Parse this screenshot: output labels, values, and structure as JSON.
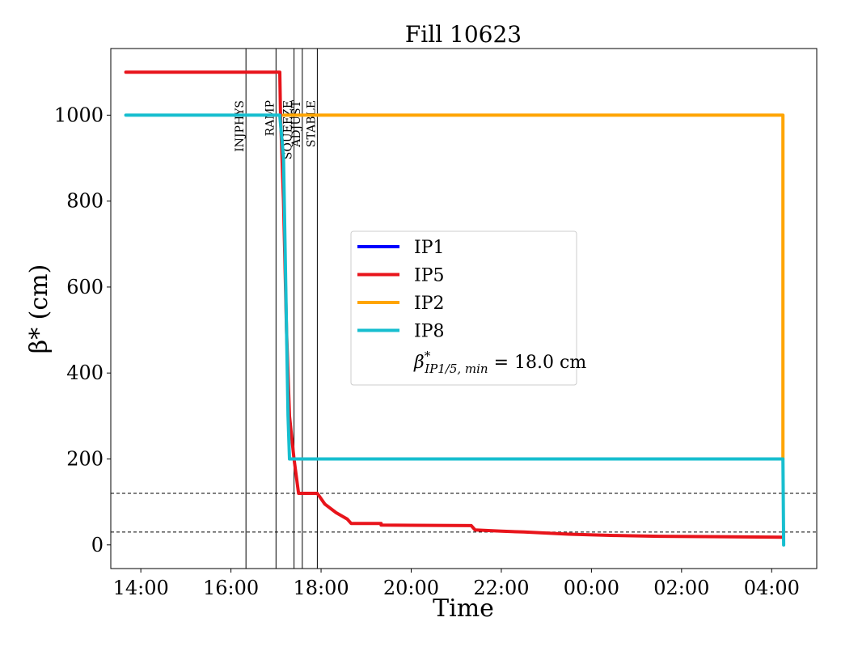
{
  "chart_data": {
    "type": "line",
    "title": "Fill 10623",
    "xlabel": "Time",
    "ylabel": "β* (cm)",
    "x_ticks": [
      "14:00",
      "16:00",
      "18:00",
      "20:00",
      "22:00",
      "00:00",
      "02:00",
      "04:00"
    ],
    "y_ticks": [
      0,
      200,
      400,
      600,
      800,
      1000
    ],
    "xlim": [
      "13:20",
      "05:00"
    ],
    "ylim": [
      -55,
      1155
    ],
    "grid": false,
    "legend_placement": "center",
    "series": [
      {
        "name": "IP1",
        "color": "#0000ff",
        "points": []
      },
      {
        "name": "IP5",
        "color": "#e8141b",
        "points": [
          {
            "x": "13:40",
            "y": 1100
          },
          {
            "x": "17:05",
            "y": 1100
          },
          {
            "x": "17:06",
            "y": 1000
          },
          {
            "x": "17:10",
            "y": 800
          },
          {
            "x": "17:14",
            "y": 500
          },
          {
            "x": "17:18",
            "y": 300
          },
          {
            "x": "17:24",
            "y": 200
          },
          {
            "x": "17:30",
            "y": 120
          },
          {
            "x": "17:55",
            "y": 120
          },
          {
            "x": "18:05",
            "y": 95
          },
          {
            "x": "18:20",
            "y": 75
          },
          {
            "x": "18:35",
            "y": 60
          },
          {
            "x": "18:40",
            "y": 50
          },
          {
            "x": "19:20",
            "y": 50
          },
          {
            "x": "19:20",
            "y": 46
          },
          {
            "x": "21:20",
            "y": 45
          },
          {
            "x": "21:25",
            "y": 35
          },
          {
            "x": "22:00",
            "y": 32
          },
          {
            "x": "22:30",
            "y": 30
          },
          {
            "x": "23:30",
            "y": 25
          },
          {
            "x": "00:30",
            "y": 22
          },
          {
            "x": "01:30",
            "y": 20
          },
          {
            "x": "04:15",
            "y": 18
          }
        ]
      },
      {
        "name": "IP2",
        "color": "#ffa500",
        "points": [
          {
            "x": "17:10",
            "y": 1000
          },
          {
            "x": "04:15",
            "y": 1000
          },
          {
            "x": "04:15",
            "y": 200
          }
        ]
      },
      {
        "name": "IP8",
        "color": "#17becf",
        "points": [
          {
            "x": "13:40",
            "y": 1000
          },
          {
            "x": "17:05",
            "y": 1000
          },
          {
            "x": "17:10",
            "y": 900
          },
          {
            "x": "17:13",
            "y": 600
          },
          {
            "x": "17:16",
            "y": 300
          },
          {
            "x": "17:18",
            "y": 200
          },
          {
            "x": "04:15",
            "y": 200
          },
          {
            "x": "04:16",
            "y": 0
          }
        ]
      }
    ],
    "phases": [
      {
        "label": "INJPHYS",
        "x": "16:20"
      },
      {
        "label": "RAMP",
        "x": "17:00"
      },
      {
        "label": "SQUEEZE",
        "x": "17:24"
      },
      {
        "label": "ADJUST",
        "x": "17:35"
      },
      {
        "label": "STABLE",
        "x": "17:55"
      }
    ],
    "horizontal_lines": [
      {
        "y": 120
      },
      {
        "y": 30
      }
    ],
    "legend_extra_text": "β*IP1/5,min = 18.0 cm",
    "legend_extra_parts": {
      "beta": "β",
      "star": "*",
      "subscript": "IP1/5, min",
      "rest": " = 18.0 cm"
    }
  }
}
